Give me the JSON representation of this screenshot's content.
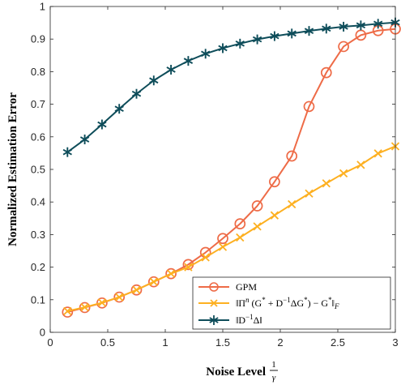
{
  "chart_data": {
    "type": "line",
    "xlabel": "Noise Level",
    "xlabel_math": "1/γ",
    "xlabel_frac_num": "1",
    "xlabel_frac_den": "γ",
    "ylabel": "Normalized Estimation Error",
    "xlim": [
      0,
      3
    ],
    "ylim": [
      0,
      1
    ],
    "xticks": [
      0,
      0.5,
      1,
      1.5,
      2,
      2.5,
      3
    ],
    "xtick_labels": [
      "0",
      "0.5",
      "1",
      "1.5",
      "2",
      "2.5",
      "3"
    ],
    "yticks": [
      0,
      0.1,
      0.2,
      0.3,
      0.4,
      0.5,
      0.6,
      0.7,
      0.8,
      0.9,
      1
    ],
    "ytick_labels": [
      "0",
      "0.1",
      "0.2",
      "0.3",
      "0.4",
      "0.5",
      "0.6",
      "0.7",
      "0.8",
      "0.9",
      "1"
    ],
    "grid": false,
    "legend_position": "bottom-right",
    "x": [
      0.15,
      0.3,
      0.45,
      0.6,
      0.75,
      0.9,
      1.05,
      1.2,
      1.35,
      1.5,
      1.65,
      1.8,
      1.95,
      2.1,
      2.25,
      2.4,
      2.55,
      2.7,
      2.85,
      3.0
    ],
    "series": [
      {
        "name": "GPM",
        "legend_label": "GPM",
        "color": "#EE6B47",
        "marker": "circle",
        "values": [
          0.062,
          0.076,
          0.09,
          0.108,
          0.13,
          0.155,
          0.18,
          0.208,
          0.245,
          0.288,
          0.333,
          0.388,
          0.462,
          0.541,
          0.693,
          0.797,
          0.877,
          0.912,
          0.926,
          0.931
        ]
      },
      {
        "name": "‖Πⁿ(G* + D⁻¹ΔG*) − G*‖_F",
        "legend_label_parts": [
          "‖Π",
          "n",
          " (G",
          "*",
          " + D",
          "−1",
          "ΔG",
          "*",
          ") − G",
          "*",
          "‖",
          "F"
        ],
        "color": "#FDB021",
        "marker": "x",
        "values": [
          0.065,
          0.077,
          0.091,
          0.108,
          0.13,
          0.155,
          0.18,
          0.2,
          0.23,
          0.262,
          0.291,
          0.325,
          0.359,
          0.393,
          0.426,
          0.457,
          0.488,
          0.514,
          0.549,
          0.571
        ]
      },
      {
        "name": "‖D⁻¹Δ‖",
        "legend_label_parts": [
          "‖D",
          "−1",
          "Δ‖"
        ],
        "color": "#0E4D5A",
        "marker": "asterisk",
        "values": [
          0.553,
          0.592,
          0.638,
          0.686,
          0.732,
          0.773,
          0.806,
          0.833,
          0.855,
          0.872,
          0.886,
          0.899,
          0.909,
          0.917,
          0.925,
          0.932,
          0.938,
          0.942,
          0.947,
          0.951
        ]
      }
    ]
  }
}
